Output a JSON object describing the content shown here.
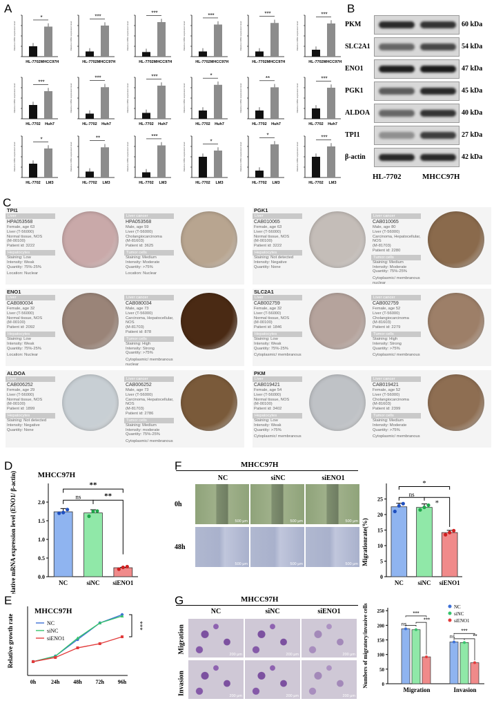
{
  "labels": {
    "A": "A",
    "B": "B",
    "C": "C",
    "D": "D",
    "E": "E",
    "F": "F",
    "G": "G"
  },
  "panelA": {
    "ylabel": "Relative mRNA expression level",
    "rows": [
      {
        "left": "HL-7702",
        "right": "MHCC97H",
        "charts": [
          {
            "v": [
              1.0,
              2.9
            ],
            "sig": "*"
          },
          {
            "v": [
              1.0,
              6.0
            ],
            "sig": "***"
          },
          {
            "v": [
              1.0,
              7.5
            ],
            "sig": "***"
          },
          {
            "v": [
              1.0,
              6.2
            ],
            "sig": "***"
          },
          {
            "v": [
              1.0,
              6.5
            ],
            "sig": "***"
          },
          {
            "v": [
              1.0,
              4.8
            ],
            "sig": "***"
          }
        ]
      },
      {
        "left": "HL-7702",
        "right": "Huh7",
        "charts": [
          {
            "v": [
              1.0,
              2.0
            ],
            "sig": "***"
          },
          {
            "v": [
              1.0,
              6.1
            ],
            "sig": "***"
          },
          {
            "v": [
              1.0,
              5.6
            ],
            "sig": "***"
          },
          {
            "v": [
              1.0,
              4.1
            ],
            "sig": "*"
          },
          {
            "v": [
              1.0,
              3.8
            ],
            "sig": "**"
          },
          {
            "v": [
              1.0,
              3.0
            ],
            "sig": "***"
          }
        ]
      },
      {
        "left": "HL-7702",
        "right": "LM3",
        "charts": [
          {
            "v": [
              1.0,
              2.1
            ],
            "sig": "*"
          },
          {
            "v": [
              1.0,
              5.1
            ],
            "sig": "**"
          },
          {
            "v": [
              1.0,
              6.2
            ],
            "sig": "***"
          },
          {
            "v": [
              1.0,
              1.3
            ],
            "sig": "*"
          },
          {
            "v": [
              1.0,
              4.8
            ],
            "sig": "*"
          },
          {
            "v": [
              1.0,
              1.5
            ],
            "sig": "***"
          }
        ]
      }
    ]
  },
  "panelB": {
    "bands": [
      {
        "name": "PKM",
        "kda": "60 kDa"
      },
      {
        "name": "SLC2A1",
        "kda": "54 kDa"
      },
      {
        "name": "ENO1",
        "kda": "47 kDa"
      },
      {
        "name": "PGK1",
        "kda": "45 kDa"
      },
      {
        "name": "ALDOA",
        "kda": "40 kDa"
      },
      {
        "name": "TPI1",
        "kda": "27 kDa"
      },
      {
        "name": "β-actin",
        "kda": "42 kDa"
      }
    ],
    "lane1": "HL-7702",
    "lane2": "MHCC97H"
  },
  "panelC": {
    "entries": [
      {
        "gene": "TPI1",
        "normal": {
          "tissue": "Liver",
          "ab": "HPA053568",
          "info": [
            "Female, age 63",
            "Liver (T-56000)",
            "Normal tissue, NOS",
            "(M-00100)",
            "Patient id: 3222"
          ],
          "cell": "Hepatocytes",
          "stain": [
            "Staining: Low",
            "Intensity: Weak",
            "Quantity: 75%-25%"
          ],
          "loc": "Location: Nuclear"
        },
        "cancer": {
          "tissue": "Liver cancer",
          "ab": "HPA053568",
          "info": [
            "Male, age 59",
            "Liver (T-56000)",
            "Cholangiocarcinoma",
            "(M-81603)",
            "Patient id: 3625"
          ],
          "cell": "Tumor cells",
          "stain": [
            "Staining: Medium",
            "Intensity: Moderate",
            "Quantity: >75%"
          ],
          "loc": "Location: Nuclear"
        }
      },
      {
        "gene": "PGK1",
        "normal": {
          "tissue": "Liver",
          "ab": "CAB010065",
          "info": [
            "Female, age 63",
            "Liver (T-56000)",
            "Normal tissue, NOS",
            "(M-00100)",
            "Patient id: 3222"
          ],
          "cell": "Hepatocytes",
          "stain": [
            "Staining: Not detected",
            "Intensity: Negative",
            "Quantity: None"
          ],
          "loc": ""
        },
        "cancer": {
          "tissue": "Liver cancer",
          "ab": "CAB010065",
          "info": [
            "Male, age 80",
            "Liver (T-56000)",
            "Carcinoma, Hepatocellular, NOS",
            "(M-81703)",
            "Patient id: 2280"
          ],
          "cell": "Tumor cells",
          "stain": [
            "Staining: Medium",
            "Intensity: Moderate",
            "Quantity: 75%-25%"
          ],
          "loc": "Cytoplasmic/ membranous nuclear"
        }
      },
      {
        "gene": "ENO1",
        "normal": {
          "tissue": "Liver",
          "ab": "CAB080034",
          "info": [
            "Female, age 32",
            "Liver (T-56000)",
            "Normal tissue, NOS",
            "(M-00100)",
            "Patient id: 2092"
          ],
          "cell": "Hepatocytes",
          "stain": [
            "Staining: Low",
            "Intensity: Weak",
            "Quantity: 75%-25%"
          ],
          "loc": "Location: Nuclear"
        },
        "cancer": {
          "tissue": "Liver cancer",
          "ab": "CAB080034",
          "info": [
            "Male, age 73",
            "Liver (T-56000)",
            "Carcinoma, Hepatocellular, NOS",
            "(M-81703)",
            "Patient id: 878"
          ],
          "cell": "Tumor cells",
          "stain": [
            "Staining: High",
            "Intensity: Strong",
            "Quantity: >75%"
          ],
          "loc": "Cytoplasmic/ membranous nuclear"
        }
      },
      {
        "gene": "SLC2A1",
        "normal": {
          "tissue": "Liver",
          "ab": "CAB002759",
          "info": [
            "Female, age 32",
            "Liver (T-56000)",
            "Normal tissue, NOS",
            "(M-00100)",
            "Patient id: 1846"
          ],
          "cell": "Hepatocytes",
          "stain": [
            "Staining: Low",
            "Intensity: Weak",
            "Quantity: 75%-25%"
          ],
          "loc": "Cytoplasmic/ membranous"
        },
        "cancer": {
          "tissue": "Liver cancer",
          "ab": "CAB002759",
          "info": [
            "Female, age 52",
            "Liver (T-56000)",
            "Cholangiocarcinoma",
            "(M-81603)",
            "Patient id: 2279"
          ],
          "cell": "Tumor cells",
          "stain": [
            "Staining: High",
            "Intensity: Strong",
            "Quantity: >75%"
          ],
          "loc": "Cytoplasmic/ membranous"
        }
      },
      {
        "gene": "ALDOA",
        "normal": {
          "tissue": "Liver",
          "ab": "CAB006252",
          "info": [
            "Female, age 29",
            "Liver (T-56000)",
            "Normal tissue, NOS",
            "(M-00100)",
            "Patient id: 1899"
          ],
          "cell": "Hepatocytes",
          "stain": [
            "Staining: Not detected",
            "Intensity: Negative",
            "Quantity: None"
          ],
          "loc": ""
        },
        "cancer": {
          "tissue": "Liver cancer",
          "ab": "CAB006252",
          "info": [
            "Male, age 73",
            "Liver (T-56000)",
            "Carcinoma, Hepatocellular, NOS",
            "(M-81703)",
            "Patient id: 2786"
          ],
          "cell": "Tumor cells",
          "stain": [
            "Staining: Medium",
            "Intensity: moderate",
            "Quantity: 75%-25%"
          ],
          "loc": "Cytoplasmic/ membranous"
        }
      },
      {
        "gene": "PKM",
        "normal": {
          "tissue": "Liver",
          "ab": "CAB019421",
          "info": [
            "Female, age 54",
            "Liver (T-56000)",
            "Normal tissue, NOS",
            "(M-00100)",
            "Patient id: 3402"
          ],
          "cell": "Hepatocytes",
          "stain": [
            "Staining: Low",
            "Intensity: Weak",
            "Quantity: >75%"
          ],
          "loc": "Cytoplasmic/ membranous"
        },
        "cancer": {
          "tissue": "Liver cancer",
          "ab": "CAB019421",
          "info": [
            "Female, age 52",
            "Liver (T-56000)",
            "Cholangiocarcinoma",
            "(M-81603)",
            "Patient id: 2399"
          ],
          "cell": "Tumor cells",
          "stain": [
            "Staining: Medium",
            "Intensity: Moderate",
            "Quantity: >75%"
          ],
          "loc": "Cytoplasmic/ membranous"
        }
      }
    ]
  },
  "panelD": {
    "title": "MHCC97H",
    "ylabel": "Relative mRNA expression level (ENO1/ β-actin)",
    "sig_ns": "ns",
    "sig_2": "**",
    "sig_top": "**"
  },
  "panelE": {
    "title": "MHCC97H",
    "ylabel": "Relative growth rate"
  },
  "panelF": {
    "title": "MHCC97H",
    "cols": [
      "NC",
      "siNC",
      "siENO1"
    ],
    "rows": [
      "0h",
      "48h"
    ],
    "scale": "500 μm",
    "ylabel": "Migrationrate(%)",
    "sig_ns": "ns",
    "sig_a": "*",
    "sig_b": "*"
  },
  "panelG": {
    "title": "MHCC97H",
    "cols": [
      "NC",
      "siNC",
      "siENO1"
    ],
    "rows": [
      "Migration",
      "Invasion"
    ],
    "scale": "200 μm",
    "ylabel": "Numbers of migratory/invasive cells",
    "sig": [
      "***",
      "ns",
      "***",
      "***",
      "ns",
      "**"
    ]
  },
  "chart_data": [
    {
      "type": "bar",
      "title": "MHCC97H",
      "categories": [
        "NC",
        "siNC",
        "siENO1"
      ],
      "values": [
        1.74,
        1.71,
        0.24
      ],
      "points": [
        [
          1.7,
          1.72,
          1.8
        ],
        [
          1.62,
          1.75,
          1.76
        ],
        [
          0.2,
          0.25,
          0.27
        ]
      ],
      "ylabel": "Relative mRNA expression level (ENO1/ β-actin)",
      "ylim": [
        0,
        2.5
      ],
      "yticks": [
        0.0,
        0.5,
        1.0,
        1.5,
        2.0
      ],
      "colors": [
        "#8fb4f0",
        "#90e8a8",
        "#f08a8a"
      ]
    },
    {
      "type": "line",
      "title": "MHCC97H",
      "x": [
        "0h",
        "24h",
        "48h",
        "72h",
        "96h"
      ],
      "series": [
        {
          "name": "NC",
          "values": [
            1.0,
            1.4,
            2.6,
            3.8,
            4.4
          ],
          "color": "#3c6fd6"
        },
        {
          "name": "siNC",
          "values": [
            1.0,
            1.4,
            2.7,
            3.8,
            4.3
          ],
          "color": "#36c36c"
        },
        {
          "name": "siENO1",
          "values": [
            1.0,
            1.3,
            2.0,
            2.3,
            2.8
          ],
          "color": "#e23b3b"
        }
      ],
      "ylabel": "Relative growth rate",
      "ylim": [
        0,
        5
      ],
      "yticks": [
        0,
        1,
        2,
        3,
        4,
        5
      ],
      "sig": "***"
    },
    {
      "type": "bar",
      "title": "",
      "categories": [
        "NC",
        "siNC",
        "siENO1"
      ],
      "values": [
        22.5,
        22.3,
        14.2
      ],
      "points": [
        [
          21.0,
          22.8,
          23.5
        ],
        [
          21.5,
          22.3,
          23.0
        ],
        [
          13.5,
          14.2,
          14.8
        ]
      ],
      "ylabel": "Migrationrate(%)",
      "ylim": [
        0,
        30
      ],
      "yticks": [
        0,
        5,
        10,
        15,
        20,
        25
      ],
      "colors": [
        "#8fb4f0",
        "#90e8a8",
        "#f08a8a"
      ]
    },
    {
      "type": "bar",
      "title": "",
      "categories": [
        "Migration",
        "Invasion"
      ],
      "series": [
        {
          "name": "NC",
          "values": [
            188,
            143
          ],
          "color": "#3c6fd6"
        },
        {
          "name": "siNC",
          "values": [
            185,
            141
          ],
          "color": "#36c36c"
        },
        {
          "name": "siENO1",
          "values": [
            92,
            72
          ],
          "color": "#e23b3b"
        }
      ],
      "ylabel": "Numbers of migratory/invasive cells",
      "ylim": [
        0,
        260
      ],
      "yticks": [
        0,
        50,
        100,
        150,
        200,
        250
      ]
    }
  ]
}
